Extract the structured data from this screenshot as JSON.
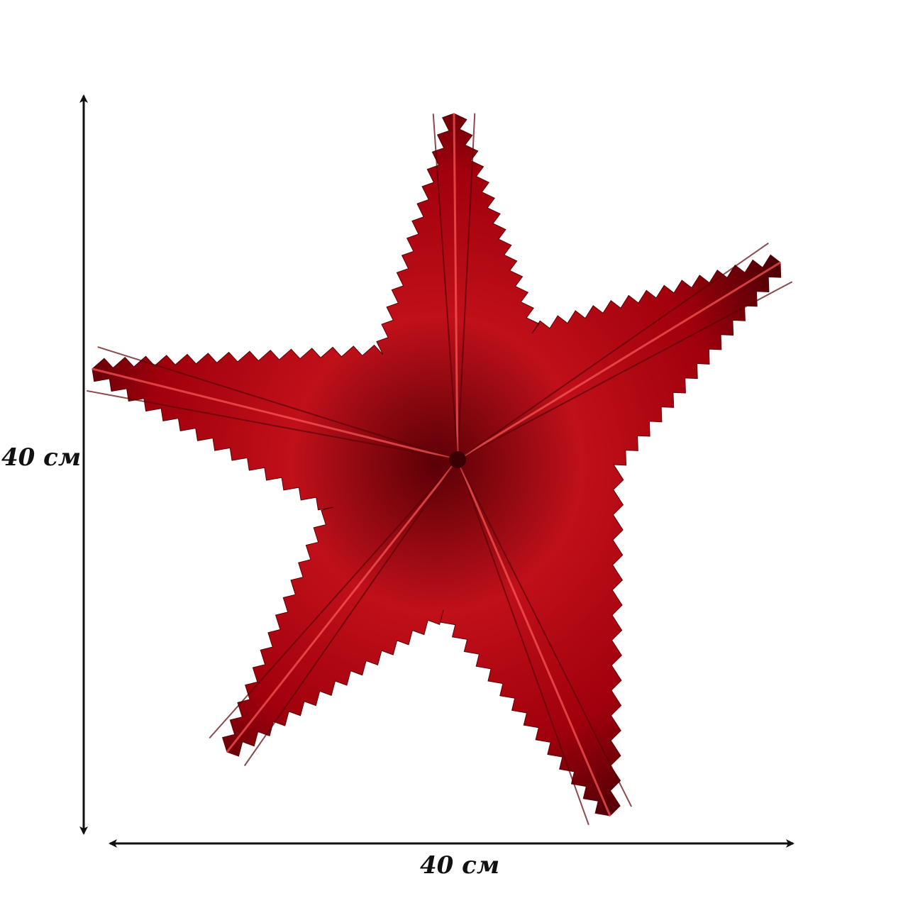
{
  "dimensions": {
    "height_label": "40 см",
    "width_label": "40 см"
  },
  "product": {
    "name_icon": "red-foil-star-icon",
    "color": "#b00010"
  },
  "colors": {
    "arrow": "#111111",
    "star_dark": "#6a0008",
    "star_mid": "#b00010",
    "star_light": "#ff3a3a"
  }
}
